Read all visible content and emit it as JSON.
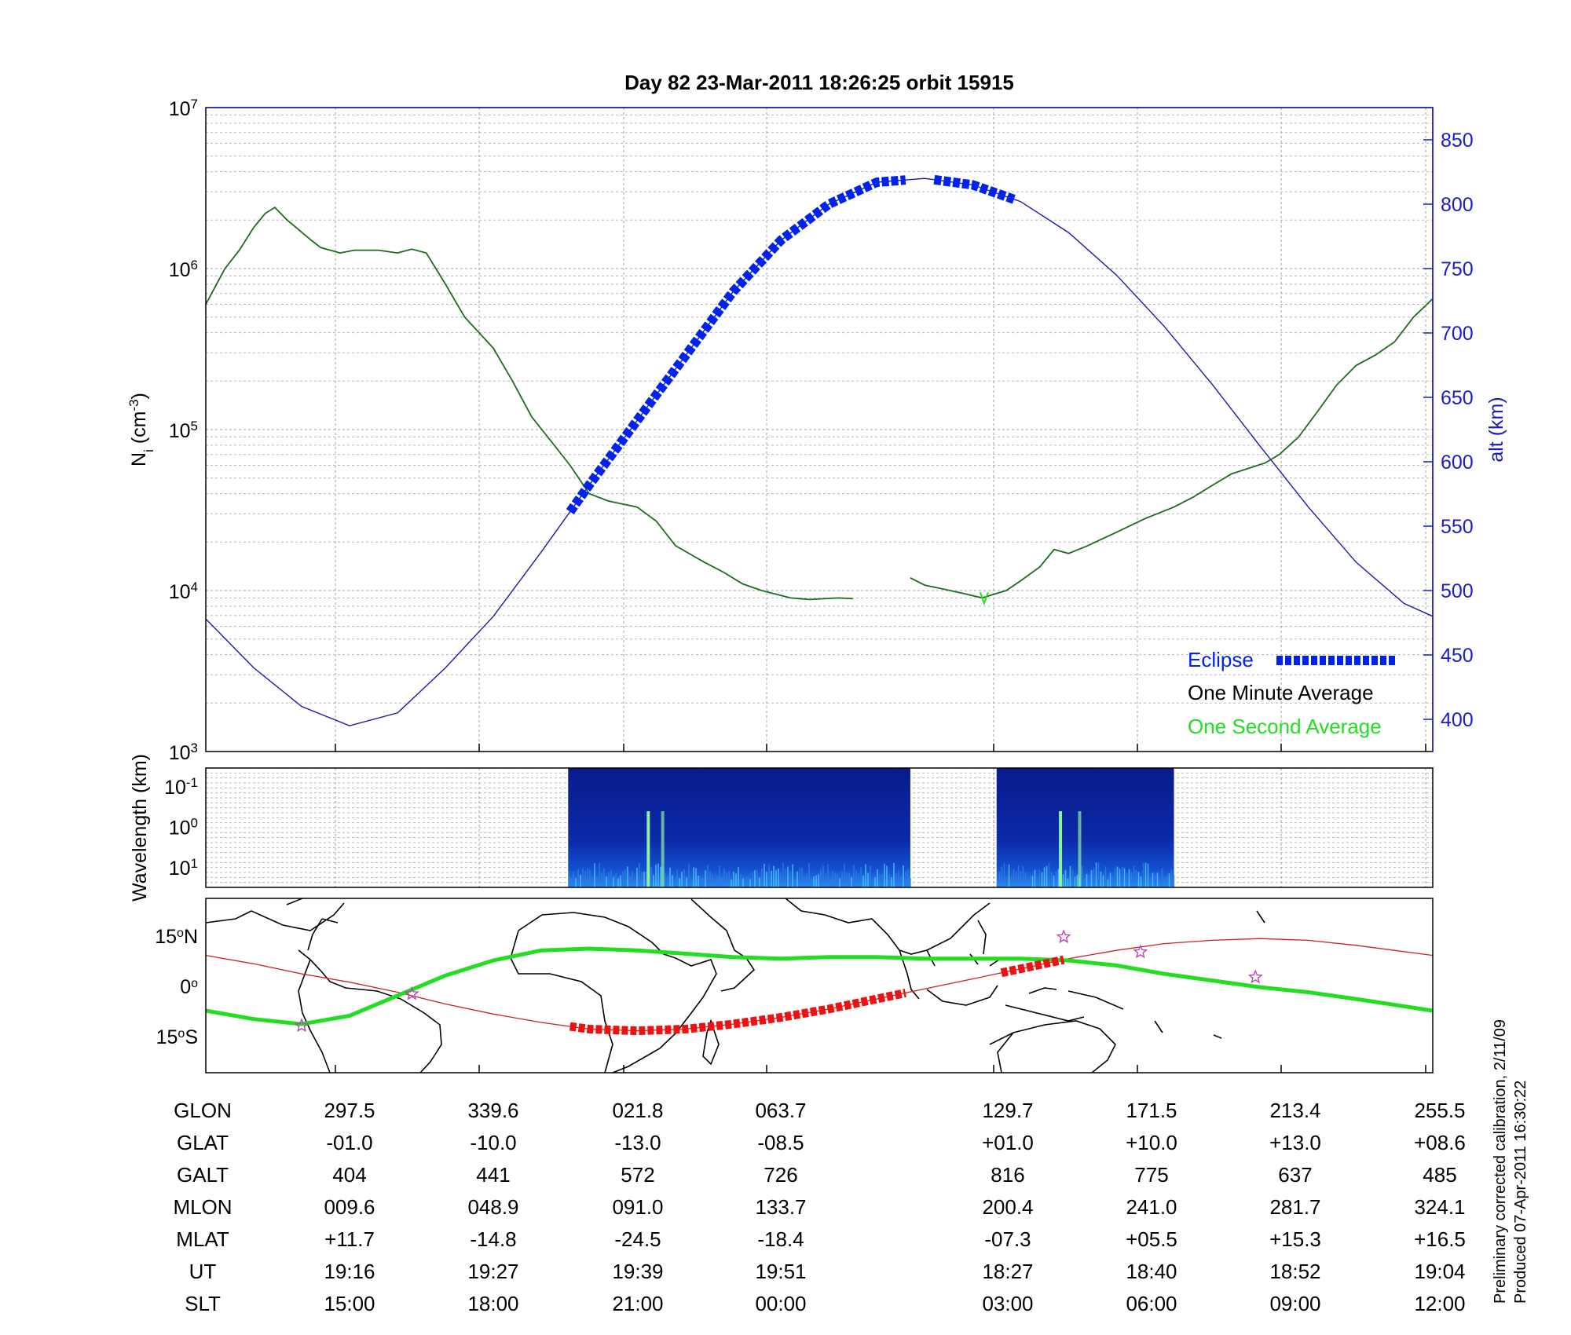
{
  "title": "Day 82  23-Mar-2011 18:26:25   orbit 15915",
  "side_note": [
    "Preliminary corrected calibration, 2/11/09",
    "Produced 07-Apr-2011 16:30:22"
  ],
  "colors": {
    "density": "#1e6b1e",
    "one_second": "#22dd22",
    "altitude": "#1a1aaa",
    "eclipse": "#0022ee",
    "ground_track": "#cc2222",
    "ground_eclipse": "#ee1111",
    "footprint": "#22dd22",
    "stars": "#bb44bb",
    "right_axis": "#1a1acc"
  },
  "chart_data": [
    {
      "type": "line",
      "panel": "density_altitude",
      "ylabel": "N",
      "ylabel_sub": "i",
      "ylabel_unit": " (cm",
      "ylabel_unit_sup": "-3",
      "ylabel_close": ")",
      "y_scale": "log",
      "ylim": [
        1000,
        10000000
      ],
      "y_ticks": [
        {
          "base": "10",
          "exp": "3",
          "value": 1000
        },
        {
          "base": "10",
          "exp": "4",
          "value": 10000
        },
        {
          "base": "10",
          "exp": "5",
          "value": 100000
        },
        {
          "base": "10",
          "exp": "6",
          "value": 1000000
        },
        {
          "base": "10",
          "exp": "7",
          "value": 10000000
        }
      ],
      "y2label": "alt (km)",
      "y2lim": [
        375,
        875
      ],
      "y2_ticks": [
        "400",
        "450",
        "500",
        "550",
        "600",
        "650",
        "700",
        "750",
        "800",
        "850"
      ],
      "grid": true,
      "legend": {
        "placement": "lower-right",
        "entries": [
          {
            "label": "Eclipse",
            "color": "#0022ee",
            "marker": "thick-dashed"
          },
          {
            "label": "One Minute Average",
            "color": "#000000"
          },
          {
            "label": "One Second Average",
            "color": "#22dd22"
          }
        ]
      },
      "density_segments": [
        {
          "points": [
            [
              0,
              600000
            ],
            [
              0.2,
              1000000
            ],
            [
              0.35,
              1300000
            ],
            [
              0.5,
              1800000
            ],
            [
              0.62,
              2200000
            ],
            [
              0.72,
              2400000
            ],
            [
              0.85,
              2000000
            ],
            [
              1.1,
              1500000
            ],
            [
              1.2,
              1350000
            ],
            [
              1.4,
              1250000
            ],
            [
              1.55,
              1300000
            ],
            [
              1.8,
              1300000
            ],
            [
              2.0,
              1250000
            ],
            [
              2.15,
              1320000
            ],
            [
              2.3,
              1250000
            ],
            [
              2.5,
              800000
            ],
            [
              2.7,
              500000
            ],
            [
              3.0,
              320000
            ],
            [
              3.2,
              200000
            ],
            [
              3.4,
              120000
            ],
            [
              3.6,
              85000
            ],
            [
              3.8,
              60000
            ],
            [
              4.0,
              40000
            ],
            [
              4.2,
              36000
            ],
            [
              4.5,
              33000
            ],
            [
              4.7,
              27000
            ],
            [
              4.9,
              19000
            ],
            [
              5.2,
              15000
            ],
            [
              5.4,
              13000
            ],
            [
              5.6,
              11000
            ],
            [
              5.8,
              10000
            ],
            [
              6.1,
              9000
            ],
            [
              6.3,
              8800
            ],
            [
              6.6,
              9000
            ],
            [
              6.75,
              8900
            ]
          ]
        },
        {
          "points": [
            [
              7.35,
              12000
            ],
            [
              7.5,
              10800
            ],
            [
              7.7,
              10200
            ],
            [
              7.9,
              9600
            ],
            [
              8.1,
              9000
            ],
            [
              8.2,
              9400
            ],
            [
              8.35,
              10000
            ],
            [
              8.5,
              11500
            ],
            [
              8.7,
              14000
            ],
            [
              8.85,
              18000
            ],
            [
              9.0,
              17000
            ],
            [
              9.2,
              19000
            ],
            [
              9.5,
              23000
            ],
            [
              9.8,
              28000
            ],
            [
              10.1,
              33000
            ],
            [
              10.3,
              38000
            ],
            [
              10.5,
              45000
            ],
            [
              10.7,
              53000
            ],
            [
              10.9,
              58000
            ],
            [
              11.05,
              62000
            ],
            [
              11.2,
              70000
            ],
            [
              11.4,
              90000
            ],
            [
              11.6,
              130000
            ],
            [
              11.8,
              190000
            ],
            [
              12.0,
              250000
            ],
            [
              12.2,
              290000
            ],
            [
              12.4,
              350000
            ],
            [
              12.6,
              500000
            ],
            [
              12.8,
              650000
            ]
          ]
        }
      ],
      "one_second_marker": {
        "x": 8.12,
        "y": 8900
      },
      "altitude_km": [
        [
          0,
          478
        ],
        [
          0.5,
          440
        ],
        [
          1.0,
          410
        ],
        [
          1.5,
          395
        ],
        [
          2.0,
          405
        ],
        [
          2.5,
          440
        ],
        [
          3.0,
          480
        ],
        [
          3.5,
          530
        ],
        [
          4.0,
          582
        ],
        [
          4.5,
          632
        ],
        [
          5.0,
          682
        ],
        [
          5.5,
          732
        ],
        [
          6.0,
          772
        ],
        [
          6.5,
          800
        ],
        [
          7.0,
          817
        ],
        [
          7.5,
          820
        ],
        [
          8.0,
          815
        ],
        [
          8.5,
          802
        ],
        [
          9.0,
          778
        ],
        [
          9.5,
          745
        ],
        [
          10.0,
          705
        ],
        [
          10.5,
          660
        ],
        [
          11.0,
          612
        ],
        [
          11.5,
          565
        ],
        [
          12.0,
          522
        ],
        [
          12.5,
          490
        ],
        [
          12.8,
          480
        ]
      ],
      "eclipse_segments": [
        [
          3.8,
          7.3
        ],
        [
          7.6,
          8.45
        ]
      ]
    },
    {
      "type": "heatmap",
      "panel": "wavelength_spectrogram",
      "ylabel": "Wavelength (km)",
      "y_ticks": [
        {
          "base": "10",
          "exp": "-1",
          "position": 0.15
        },
        {
          "base": "10",
          "exp": "0",
          "position": 0.49
        },
        {
          "base": "10",
          "exp": "1",
          "position": 0.83
        }
      ],
      "data_blocks": [
        [
          3.78,
          7.35
        ],
        [
          8.25,
          10.1
        ]
      ]
    },
    {
      "type": "line",
      "panel": "ground_track_map",
      "y_ticks": [
        {
          "value": "15",
          "unit": "o",
          "hemi": "N",
          "lat": 15
        },
        {
          "value": "0",
          "unit": "o",
          "hemi": "",
          "lat": 0
        },
        {
          "value": "15",
          "unit": "o",
          "hemi": "S",
          "lat": -15
        }
      ],
      "ylim": [
        -26,
        26
      ],
      "ground_track_lat": [
        [
          0,
          9
        ],
        [
          0.5,
          6.5
        ],
        [
          1,
          3.5
        ],
        [
          1.5,
          1
        ],
        [
          2,
          -2
        ],
        [
          2.5,
          -5.5
        ],
        [
          3,
          -8.5
        ],
        [
          3.5,
          -11
        ],
        [
          4,
          -13
        ],
        [
          4.5,
          -13.5
        ],
        [
          5,
          -13
        ],
        [
          5.5,
          -11.5
        ],
        [
          6,
          -9.5
        ],
        [
          6.5,
          -7
        ],
        [
          7,
          -4
        ],
        [
          7.5,
          -1
        ],
        [
          8,
          2
        ],
        [
          8.5,
          5
        ],
        [
          9,
          8
        ],
        [
          9.5,
          10.5
        ],
        [
          10,
          12.5
        ],
        [
          10.5,
          13.5
        ],
        [
          11,
          14
        ],
        [
          11.5,
          13.5
        ],
        [
          12,
          12
        ],
        [
          12.8,
          9
        ]
      ],
      "ground_eclipse_segments": [
        [
          3.8,
          7.3
        ],
        [
          8.3,
          8.95
        ]
      ],
      "footprint_lat": [
        [
          0,
          -7.5
        ],
        [
          0.5,
          -10
        ],
        [
          1,
          -11.5
        ],
        [
          1.5,
          -9
        ],
        [
          2,
          -3
        ],
        [
          2.5,
          3
        ],
        [
          3,
          7.5
        ],
        [
          3.5,
          10.5
        ],
        [
          4,
          11
        ],
        [
          4.5,
          10.5
        ],
        [
          5,
          9.5
        ],
        [
          5.5,
          8.5
        ],
        [
          6,
          8
        ],
        [
          6.5,
          8.5
        ],
        [
          7,
          8.5
        ],
        [
          7.5,
          8
        ],
        [
          8,
          8
        ],
        [
          8.5,
          8
        ],
        [
          9,
          7.5
        ],
        [
          9.5,
          6
        ],
        [
          10,
          3.5
        ],
        [
          10.5,
          1.5
        ],
        [
          11,
          -0.5
        ],
        [
          11.5,
          -2
        ],
        [
          12,
          -4
        ],
        [
          12.8,
          -7.5
        ]
      ],
      "stars": [
        [
          1.0,
          -12
        ],
        [
          2.15,
          -2.5
        ],
        [
          8.95,
          14.5
        ],
        [
          9.75,
          10
        ],
        [
          10.95,
          2.5
        ]
      ]
    }
  ],
  "info_table": {
    "rows": [
      {
        "label": "GLON",
        "values": [
          "297.5",
          "339.6",
          "021.8",
          "063.7",
          "129.7",
          "171.5",
          "213.4",
          "255.5"
        ]
      },
      {
        "label": "GLAT",
        "values": [
          "-01.0",
          "-10.0",
          "-13.0",
          "-08.5",
          "+01.0",
          "+10.0",
          "+13.0",
          "+08.6"
        ]
      },
      {
        "label": "GALT",
        "values": [
          "404",
          "441",
          "572",
          "726",
          "816",
          "775",
          "637",
          "485"
        ]
      },
      {
        "label": "MLON",
        "values": [
          "009.6",
          "048.9",
          "091.0",
          "133.7",
          "200.4",
          "241.0",
          "281.7",
          "324.1"
        ]
      },
      {
        "label": "MLAT",
        "values": [
          "+11.7",
          "-14.8",
          "-24.5",
          "-18.4",
          "-07.3",
          "+05.5",
          "+15.3",
          "+16.5"
        ]
      },
      {
        "label": "UT",
        "values": [
          "19:16",
          "19:27",
          "19:39",
          "19:51",
          "18:27",
          "18:40",
          "18:52",
          "19:04"
        ]
      },
      {
        "label": "SLT",
        "values": [
          "15:00",
          "18:00",
          "21:00",
          "00:00",
          "03:00",
          "06:00",
          "09:00",
          "12:00"
        ]
      }
    ]
  }
}
